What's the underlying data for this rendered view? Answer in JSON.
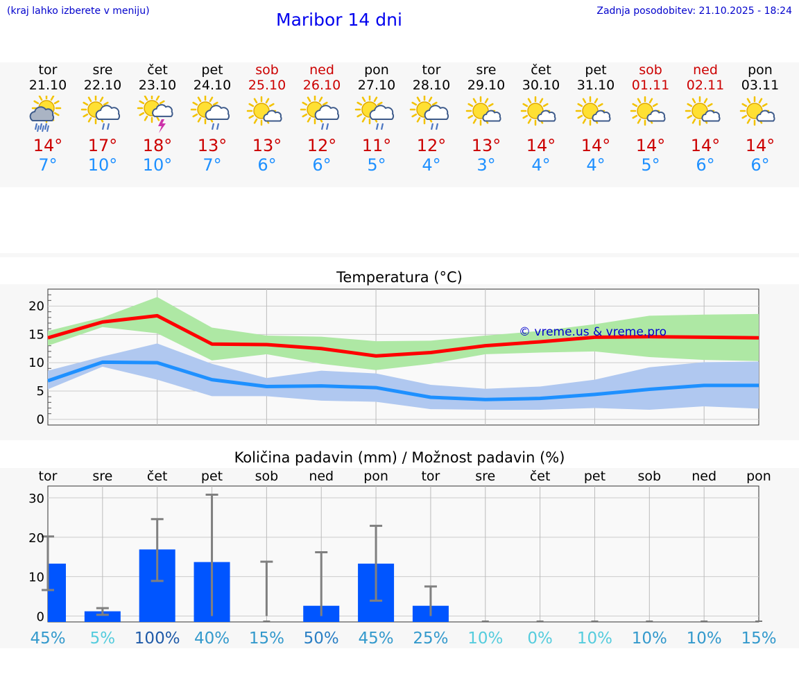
{
  "header": {
    "hint": "(kraj lahko izberete v meniju)",
    "title": "Maribor 14 dni",
    "updated": "Zadnja posodobitev: 21.10.2025 - 18:24"
  },
  "days": [
    {
      "name": "tor",
      "date": "21.10",
      "high": "14°",
      "low": "7°",
      "weekend": false,
      "icon": "sun-rain-heavy-icon"
    },
    {
      "name": "sre",
      "date": "22.10",
      "high": "17°",
      "low": "10°",
      "weekend": false,
      "icon": "sun-cloud-rain-icon"
    },
    {
      "name": "čet",
      "date": "23.10",
      "high": "18°",
      "low": "10°",
      "weekend": false,
      "icon": "sun-thunderstorm-icon"
    },
    {
      "name": "pet",
      "date": "24.10",
      "high": "13°",
      "low": "7°",
      "weekend": false,
      "icon": "sun-cloud-rain-icon"
    },
    {
      "name": "sob",
      "date": "25.10",
      "high": "13°",
      "low": "6°",
      "weekend": true,
      "icon": "sun-small-cloud-icon"
    },
    {
      "name": "ned",
      "date": "26.10",
      "high": "12°",
      "low": "6°",
      "weekend": true,
      "icon": "sun-cloud-rain-icon"
    },
    {
      "name": "pon",
      "date": "27.10",
      "high": "11°",
      "low": "5°",
      "weekend": false,
      "icon": "sun-cloud-rain-icon"
    },
    {
      "name": "tor",
      "date": "28.10",
      "high": "12°",
      "low": "4°",
      "weekend": false,
      "icon": "sun-cloud-rain-icon"
    },
    {
      "name": "sre",
      "date": "29.10",
      "high": "13°",
      "low": "3°",
      "weekend": false,
      "icon": "sun-small-cloud-icon"
    },
    {
      "name": "čet",
      "date": "30.10",
      "high": "14°",
      "low": "4°",
      "weekend": false,
      "icon": "sun-small-cloud-icon"
    },
    {
      "name": "pet",
      "date": "31.10",
      "high": "14°",
      "low": "4°",
      "weekend": false,
      "icon": "sun-small-cloud-icon"
    },
    {
      "name": "sob",
      "date": "01.11",
      "high": "14°",
      "low": "5°",
      "weekend": true,
      "icon": "sun-small-cloud-icon"
    },
    {
      "name": "ned",
      "date": "02.11",
      "high": "14°",
      "low": "6°",
      "weekend": true,
      "icon": "sun-small-cloud-icon"
    },
    {
      "name": "pon",
      "date": "03.11",
      "high": "14°",
      "low": "6°",
      "weekend": false,
      "icon": "sun-small-cloud-icon"
    }
  ],
  "chart_data": [
    {
      "type": "line",
      "title": "Temperatura (°C)",
      "watermark": "© vreme.us & vreme.pro",
      "ylim": [
        -1,
        23
      ],
      "yticks": [
        0,
        5,
        10,
        15,
        20
      ],
      "grid": true,
      "colors": {
        "max": "#ff0000",
        "max_band": "#aee8a4",
        "min": "#1e90ff",
        "min_band": "#b0c8f0"
      },
      "series": [
        {
          "name": "max",
          "values": [
            14.4,
            17.2,
            18.3,
            13.3,
            13.2,
            12.5,
            11.2,
            11.8,
            13.0,
            13.7,
            14.5,
            14.6,
            14.5,
            14.4
          ]
        },
        {
          "name": "max_lower",
          "values": [
            13.0,
            16.3,
            15.2,
            10.4,
            11.5,
            9.8,
            8.7,
            9.8,
            11.5,
            11.8,
            12.0,
            11.0,
            10.5,
            10.3
          ]
        },
        {
          "name": "max_upper",
          "values": [
            15.6,
            18.0,
            21.6,
            16.2,
            14.8,
            14.6,
            13.8,
            13.9,
            14.8,
            15.6,
            16.8,
            18.3,
            18.5,
            18.6
          ]
        },
        {
          "name": "min",
          "values": [
            6.8,
            10.1,
            10.0,
            7.0,
            5.8,
            5.9,
            5.6,
            3.9,
            3.5,
            3.7,
            4.4,
            5.3,
            6.0,
            6.0
          ]
        },
        {
          "name": "min_lower",
          "values": [
            5.3,
            9.3,
            7.0,
            4.1,
            4.1,
            3.3,
            3.1,
            1.8,
            1.7,
            1.7,
            2.0,
            1.7,
            2.3,
            1.9
          ]
        },
        {
          "name": "min_upper",
          "values": [
            8.6,
            11.1,
            13.4,
            9.8,
            7.3,
            8.6,
            8.1,
            6.1,
            5.4,
            5.8,
            7.0,
            9.2,
            10.1,
            10.2
          ]
        }
      ]
    },
    {
      "type": "bar",
      "title": "Količina padavin (mm) / Možnost padavin (%)",
      "categories": [
        "tor",
        "sre",
        "čet",
        "pet",
        "sob",
        "ned",
        "pon",
        "tor",
        "sre",
        "čet",
        "pet",
        "sob",
        "ned",
        "pon"
      ],
      "ylim": [
        -1.5,
        33
      ],
      "yticks": [
        0,
        10,
        20,
        30
      ],
      "grid": true,
      "bar_color": "#0055ff",
      "values": [
        13.3,
        1.2,
        16.9,
        13.7,
        0,
        2.6,
        13.3,
        2.6,
        0,
        0,
        0,
        0,
        0,
        0
      ],
      "range_low": [
        6.6,
        0.3,
        8.9,
        0,
        0,
        0,
        3.9,
        0,
        0,
        0,
        0,
        0,
        0,
        0
      ],
      "range_high": [
        20.2,
        2.0,
        24.6,
        30.8,
        13.8,
        16.2,
        22.9,
        7.5,
        0,
        0,
        0,
        0,
        0,
        0
      ],
      "probabilities": [
        "45%",
        "5%",
        "100%",
        "40%",
        "15%",
        "50%",
        "45%",
        "25%",
        "10%",
        "0%",
        "10%",
        "10%",
        "10%",
        "15%"
      ],
      "probability_colors": [
        "#3399cc",
        "#55ccdd",
        "#1e5aa8",
        "#3399cc",
        "#3399cc",
        "#2a7fc4",
        "#3399cc",
        "#3399cc",
        "#55ccdd",
        "#55ccdd",
        "#55ccdd",
        "#3399cc",
        "#3399cc",
        "#3399cc"
      ]
    }
  ]
}
